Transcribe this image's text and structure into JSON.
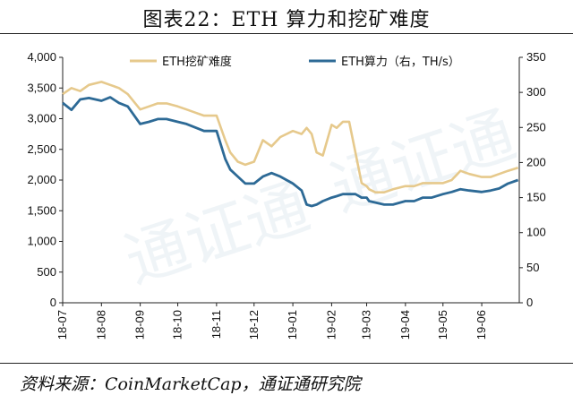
{
  "title": "图表22：ETH 算力和挖矿难度",
  "source": "资料来源：CoinMarketCap，通证通研究院",
  "colors": {
    "difficulty": "#e6c98c",
    "hashrate": "#2d6a96",
    "axis": "#222222",
    "watermark": "#dde7ee"
  },
  "chart_data": {
    "type": "line",
    "title": "",
    "left_axis": {
      "ylim": [
        0,
        4000
      ],
      "ticks": [
        "0",
        "500",
        "1,000",
        "1,500",
        "2,000",
        "2,500",
        "3,000",
        "3,500",
        "4,000"
      ]
    },
    "right_axis": {
      "ylim": [
        0,
        350
      ],
      "ticks": [
        "0",
        "50",
        "100",
        "150",
        "200",
        "250",
        "300",
        "350"
      ]
    },
    "x_axis": {
      "range": [
        "2018-07-01",
        "2019-07-01"
      ],
      "ticks": [
        "18-07",
        "18-08",
        "18-09",
        "18-10",
        "18-11",
        "18-12",
        "19-01",
        "19-02",
        "19-03",
        "19-04",
        "19-05",
        "19-06"
      ]
    },
    "legend_placement": "top",
    "grid": false,
    "series": [
      {
        "name": "ETH挖矿难度",
        "axis": "left",
        "x": [
          "2018-07-01",
          "2018-07-08",
          "2018-07-15",
          "2018-07-22",
          "2018-08-01",
          "2018-08-08",
          "2018-08-15",
          "2018-08-22",
          "2018-09-01",
          "2018-09-08",
          "2018-09-15",
          "2018-09-22",
          "2018-10-01",
          "2018-10-08",
          "2018-10-15",
          "2018-10-22",
          "2018-11-01",
          "2018-11-08",
          "2018-11-12",
          "2018-11-18",
          "2018-11-24",
          "2018-12-01",
          "2018-12-08",
          "2018-12-15",
          "2018-12-22",
          "2019-01-01",
          "2019-01-08",
          "2019-01-12",
          "2019-01-16",
          "2019-01-20",
          "2019-01-25",
          "2019-02-01",
          "2019-02-05",
          "2019-02-10",
          "2019-02-15",
          "2019-02-20",
          "2019-02-25",
          "2019-03-01",
          "2019-03-03",
          "2019-03-08",
          "2019-03-15",
          "2019-03-22",
          "2019-04-01",
          "2019-04-08",
          "2019-04-15",
          "2019-04-22",
          "2019-05-01",
          "2019-05-08",
          "2019-05-15",
          "2019-05-22",
          "2019-06-01",
          "2019-06-08",
          "2019-06-15",
          "2019-06-22",
          "2019-06-30"
        ],
        "values": [
          3400,
          3500,
          3450,
          3550,
          3600,
          3550,
          3500,
          3400,
          3150,
          3200,
          3250,
          3250,
          3200,
          3150,
          3100,
          3050,
          3050,
          2650,
          2450,
          2300,
          2250,
          2300,
          2650,
          2550,
          2700,
          2800,
          2750,
          2850,
          2750,
          2450,
          2400,
          2900,
          2850,
          2950,
          2950,
          2450,
          1950,
          1900,
          1850,
          1800,
          1800,
          1850,
          1900,
          1900,
          1950,
          1950,
          1950,
          2000,
          2150,
          2100,
          2050,
          2050,
          2100,
          2150,
          2200
        ]
      },
      {
        "name": "ETH算力（右，TH/s）",
        "axis": "right",
        "x": [
          "2018-07-01",
          "2018-07-08",
          "2018-07-15",
          "2018-07-22",
          "2018-08-01",
          "2018-08-08",
          "2018-08-15",
          "2018-08-22",
          "2018-09-01",
          "2018-09-08",
          "2018-09-15",
          "2018-09-22",
          "2018-10-01",
          "2018-10-08",
          "2018-10-15",
          "2018-10-22",
          "2018-11-01",
          "2018-11-08",
          "2018-11-12",
          "2018-11-18",
          "2018-11-24",
          "2018-12-01",
          "2018-12-08",
          "2018-12-15",
          "2018-12-22",
          "2019-01-01",
          "2019-01-08",
          "2019-01-12",
          "2019-01-16",
          "2019-01-20",
          "2019-01-25",
          "2019-02-01",
          "2019-02-05",
          "2019-02-10",
          "2019-02-15",
          "2019-02-20",
          "2019-02-25",
          "2019-03-01",
          "2019-03-03",
          "2019-03-08",
          "2019-03-15",
          "2019-03-22",
          "2019-04-01",
          "2019-04-08",
          "2019-04-15",
          "2019-04-22",
          "2019-05-01",
          "2019-05-08",
          "2019-05-15",
          "2019-05-22",
          "2019-06-01",
          "2019-06-08",
          "2019-06-15",
          "2019-06-22",
          "2019-06-30"
        ],
        "values": [
          285,
          275,
          290,
          292,
          288,
          293,
          285,
          280,
          255,
          258,
          262,
          262,
          258,
          255,
          250,
          245,
          245,
          205,
          190,
          180,
          170,
          170,
          180,
          185,
          180,
          170,
          160,
          140,
          138,
          140,
          145,
          150,
          152,
          155,
          155,
          155,
          150,
          150,
          145,
          143,
          140,
          140,
          145,
          145,
          150,
          150,
          155,
          158,
          162,
          160,
          158,
          160,
          163,
          170,
          175
        ]
      }
    ]
  }
}
